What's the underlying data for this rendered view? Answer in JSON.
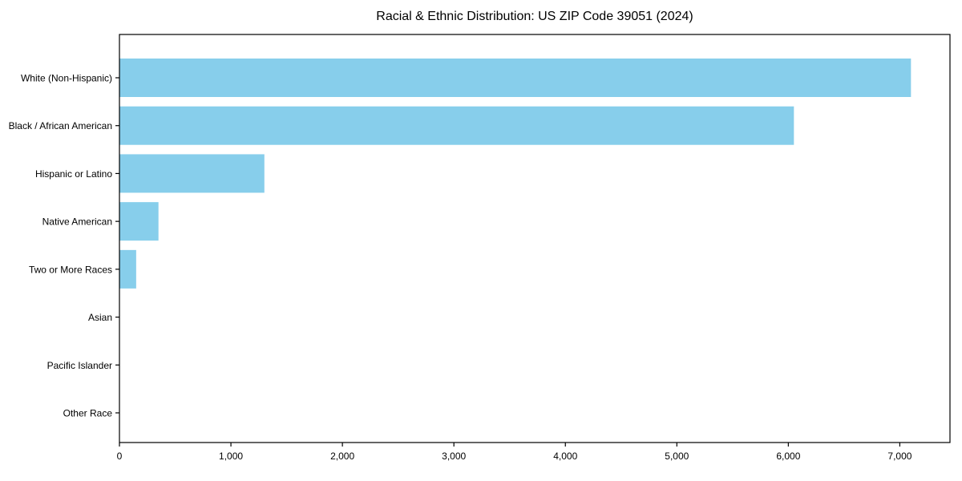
{
  "title": "Racial & Ethnic Distribution: US ZIP Code 39051 (2024)",
  "colors": {
    "bar": "#87CEEB",
    "axis": "#000000",
    "text": "#000000",
    "background": "#FFFFFF"
  },
  "chart_data": {
    "type": "bar",
    "orientation": "horizontal",
    "title": "Racial & Ethnic Distribution: US ZIP Code 39051 (2024)",
    "xlabel": "",
    "ylabel": "",
    "categories": [
      "White (Non-Hispanic)",
      "Black / African American",
      "Hispanic or Latino",
      "Native American",
      "Two or More Races",
      "Asian",
      "Pacific Islander",
      "Other Race"
    ],
    "values": [
      7100,
      6050,
      1300,
      350,
      150,
      0,
      0,
      0
    ],
    "xlim": [
      0,
      7450
    ],
    "xticks": [
      0,
      1000,
      2000,
      3000,
      4000,
      5000,
      6000,
      7000
    ],
    "xtick_labels": [
      "0",
      "1,000",
      "2,000",
      "3,000",
      "4,000",
      "5,000",
      "6,000",
      "7,000"
    ],
    "grid": false,
    "legend": null,
    "bar_color": "#87CEEB"
  }
}
